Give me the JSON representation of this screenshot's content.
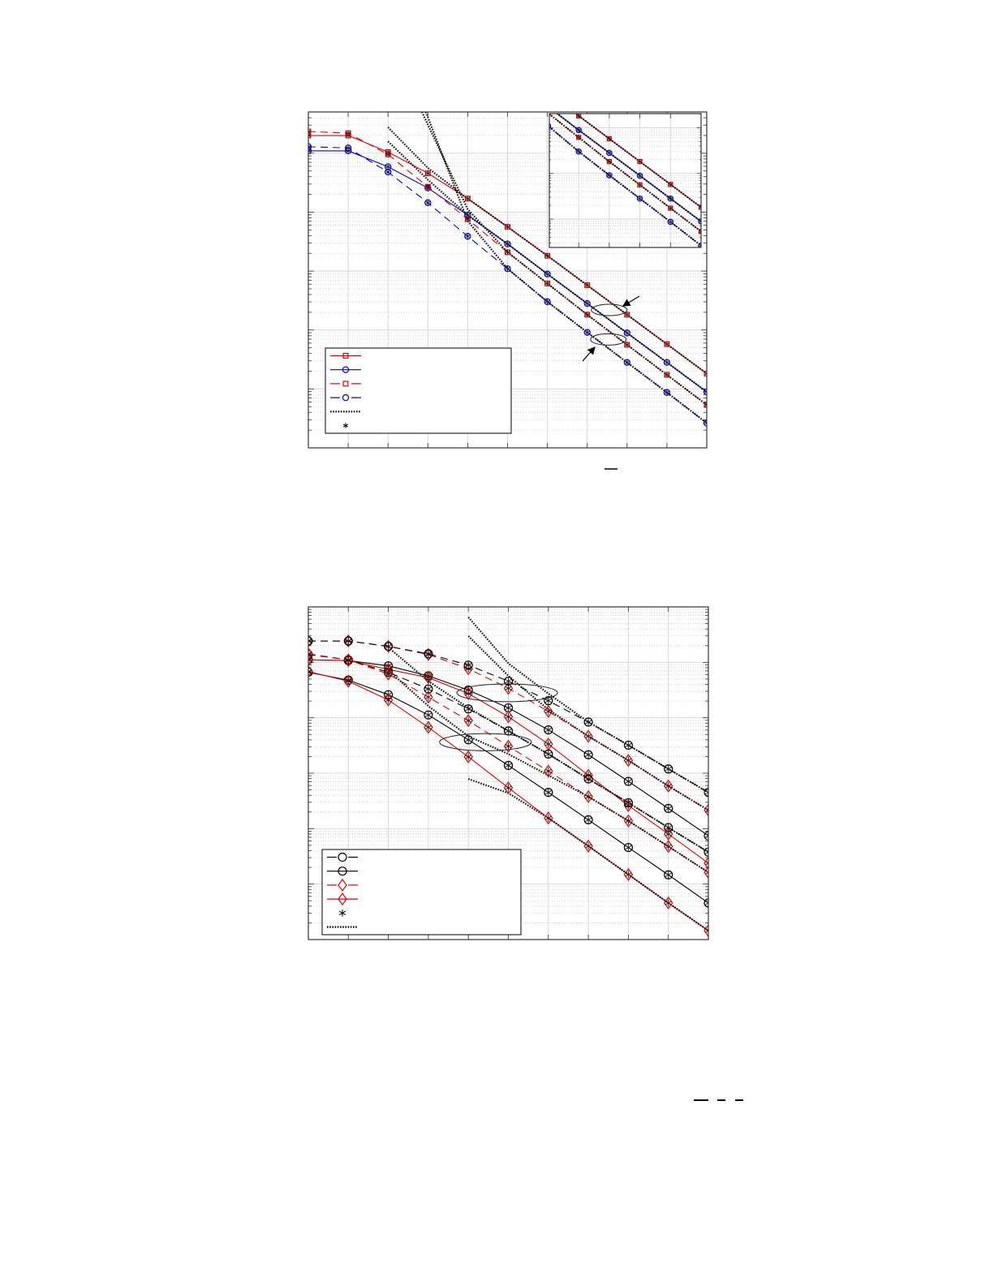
{
  "chart_data": [
    {
      "type": "line",
      "y_scale": "log",
      "xlim": [
        0,
        10
      ],
      "log10_ylim": [
        -6.0,
        -0.3
      ],
      "grid": true,
      "legend_placement": "bottom-left",
      "x": [
        0,
        1,
        2,
        3,
        4,
        5,
        6,
        7,
        8,
        9,
        10
      ],
      "series": [
        {
          "style": "solid",
          "marker": "square",
          "color": "#e00000",
          "log10_y": [
            -0.7,
            -0.7,
            -0.98,
            -1.34,
            -1.77,
            -2.25,
            -2.74,
            -3.24,
            -3.74,
            -4.24,
            -4.74
          ]
        },
        {
          "style": "solid",
          "marker": "circle",
          "color": "#0000d0",
          "log10_y": [
            -0.96,
            -0.96,
            -1.23,
            -1.59,
            -2.05,
            -2.54,
            -3.05,
            -3.55,
            -4.05,
            -4.55,
            -5.05
          ]
        },
        {
          "style": "dashed",
          "marker": "square",
          "color": "#e00000",
          "log10_y": [
            -0.63,
            -0.66,
            -1.02,
            -1.57,
            -2.12,
            -2.68,
            -3.21,
            -3.74,
            -4.25,
            -4.76,
            -5.27
          ]
        },
        {
          "style": "dashed",
          "marker": "circle",
          "color": "#0000d0",
          "log10_y": [
            -0.89,
            -0.91,
            -1.32,
            -1.84,
            -2.41,
            -2.96,
            -3.52,
            -4.04,
            -4.55,
            -5.06,
            -5.58
          ]
        }
      ],
      "asterisk_overlay": true,
      "dotted_curves": [
        {
          "x": [
            2,
            3,
            4,
            5,
            6,
            7,
            8,
            9,
            10
          ],
          "log10_y": [
            -0.56,
            -1.25,
            -1.77,
            -2.25,
            -2.74,
            -3.24,
            -3.74,
            -4.24,
            -4.74
          ]
        },
        {
          "x": [
            2,
            3,
            4,
            5,
            6,
            7,
            8,
            9,
            10
          ],
          "log10_y": [
            -0.8,
            -1.45,
            -2.05,
            -2.54,
            -3.05,
            -3.55,
            -4.05,
            -4.55,
            -5.05
          ]
        },
        {
          "x": [
            2.85,
            4,
            5,
            6,
            7,
            8,
            9,
            10
          ],
          "log10_y": [
            -0.3,
            -1.95,
            -2.68,
            -3.21,
            -3.74,
            -4.25,
            -4.76,
            -5.27
          ]
        },
        {
          "x": [
            2.95,
            4,
            5,
            6,
            7,
            8,
            9,
            10
          ],
          "log10_y": [
            -0.3,
            -2.15,
            -2.96,
            -3.52,
            -4.04,
            -4.55,
            -5.06,
            -5.58
          ]
        }
      ],
      "legend_entries": [
        {
          "style": "solid",
          "marker": "square",
          "color": "#e00000"
        },
        {
          "style": "solid",
          "marker": "circle",
          "color": "#0000d0"
        },
        {
          "style": "dashed",
          "marker": "square",
          "color": "#e00000"
        },
        {
          "style": "dashed",
          "marker": "circle",
          "color": "#0000d0"
        },
        {
          "style": "dotted",
          "marker": "none",
          "color": "#000000"
        },
        {
          "style": "none",
          "marker": "asterisk",
          "color": "#000000"
        }
      ],
      "inset": {
        "xlim": [
          5.04,
          10
        ],
        "log10_ylim": [
          -5.62,
          -2.69
        ]
      }
    },
    {
      "type": "line",
      "y_scale": "log",
      "xlim": [
        0,
        10
      ],
      "log10_ylim": [
        -6.0,
        0.0
      ],
      "grid": true,
      "legend_placement": "bottom-left",
      "x": [
        0,
        1,
        2,
        3,
        4,
        5,
        6,
        7,
        8,
        9,
        10
      ],
      "series": [
        {
          "style": "dashed",
          "marker": "diamond",
          "color": "#e00000",
          "log10_y": [
            -0.615,
            -0.615,
            -0.712,
            -0.859,
            -1.115,
            -1.468,
            -1.885,
            -2.333,
            -2.769,
            -3.231,
            -3.667
          ]
        },
        {
          "style": "dashed",
          "marker": "circle",
          "color": "#000000",
          "log10_y": [
            -0.615,
            -0.615,
            -0.712,
            -0.846,
            -1.051,
            -1.34,
            -1.692,
            -2.077,
            -2.494,
            -2.923,
            -3.346
          ]
        },
        {
          "style": "solid",
          "marker": "circle",
          "color": "#000000",
          "log10_y": [
            -0.955,
            -0.968,
            -1.064,
            -1.244,
            -1.5,
            -1.821,
            -2.218,
            -2.667,
            -3.147,
            -3.635,
            -4.128
          ]
        },
        {
          "style": "solid",
          "marker": "diamond",
          "color": "#e00000",
          "log10_y": [
            -0.955,
            -0.968,
            -1.128,
            -1.276,
            -1.564,
            -1.981,
            -2.474,
            -3.038,
            -3.583,
            -4.096,
            -4.622
          ]
        },
        {
          "style": "dashed",
          "marker": "circle",
          "color": "#000000",
          "log10_y": [
            -0.859,
            -0.955,
            -1.179,
            -1.481,
            -1.84,
            -2.237,
            -2.654,
            -3.103,
            -3.532,
            -3.981,
            -4.423
          ]
        },
        {
          "style": "dashed",
          "marker": "diamond",
          "color": "#e00000",
          "log10_y": [
            -0.846,
            -0.955,
            -1.212,
            -1.628,
            -2.051,
            -2.513,
            -2.962,
            -3.423,
            -3.859,
            -4.321,
            -4.788
          ]
        },
        {
          "style": "solid",
          "marker": "circle",
          "color": "#000000",
          "log10_y": [
            -1.179,
            -1.321,
            -1.583,
            -1.949,
            -2.397,
            -2.859,
            -3.346,
            -3.84,
            -4.34,
            -4.833,
            -5.34
          ]
        },
        {
          "style": "solid",
          "marker": "diamond",
          "color": "#e00000",
          "log10_y": [
            -1.167,
            -1.34,
            -1.679,
            -2.173,
            -2.705,
            -3.263,
            -3.808,
            -4.314,
            -4.827,
            -5.34,
            -5.84
          ]
        }
      ],
      "asterisk_overlay": true,
      "dotted_curves": [
        {
          "x": [
            4,
            5,
            6,
            7,
            8,
            9,
            10
          ],
          "log10_y": [
            -0.186,
            -1.019,
            -1.564,
            -2.077,
            -2.494,
            -2.923,
            -3.346
          ]
        },
        {
          "x": [
            4,
            5,
            6,
            7,
            8,
            9,
            10
          ],
          "log10_y": [
            -0.526,
            -1.244,
            -1.853,
            -2.333,
            -2.769,
            -3.231,
            -3.667
          ]
        },
        {
          "x": [
            2,
            3,
            4,
            5,
            6,
            7,
            8,
            9,
            10
          ],
          "log10_y": [
            -0.731,
            -1.34,
            -1.821,
            -2.237,
            -2.654,
            -3.103,
            -3.532,
            -3.981,
            -4.423
          ]
        },
        {
          "x": [
            2,
            3,
            4,
            5,
            6,
            7,
            8,
            9,
            10
          ],
          "log10_y": [
            -1.147,
            -1.788,
            -2.333,
            -2.654,
            -3.038,
            -3.423,
            -3.859,
            -4.321,
            -4.788
          ]
        },
        {
          "x": [
            4,
            5,
            6,
            7,
            8,
            9,
            10
          ],
          "log10_y": [
            -3.103,
            -3.359,
            -3.808,
            -4.314,
            -4.827,
            -5.34,
            -5.84
          ]
        }
      ],
      "legend_entries": [
        {
          "style": "dashed",
          "marker": "circle",
          "color": "#000000"
        },
        {
          "style": "solid",
          "marker": "circle",
          "color": "#000000"
        },
        {
          "style": "dashed",
          "marker": "diamond",
          "color": "#e00000"
        },
        {
          "style": "solid",
          "marker": "diamond",
          "color": "#e00000"
        },
        {
          "style": "none",
          "marker": "asterisk",
          "color": "#000000"
        },
        {
          "style": "dotted",
          "marker": "none",
          "color": "#000000"
        }
      ]
    }
  ]
}
